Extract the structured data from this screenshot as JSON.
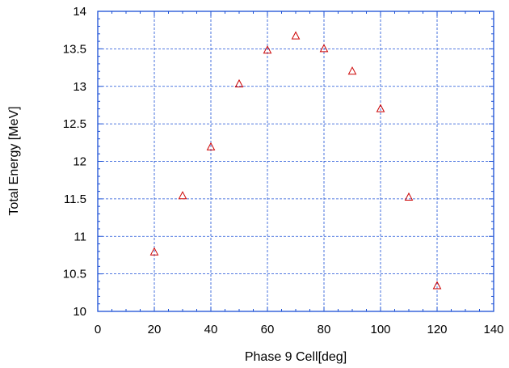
{
  "chart_data": {
    "type": "scatter",
    "title": "",
    "xlabel": "Phase 9 Cell[deg]",
    "ylabel": "Total Energy [MeV]",
    "xlim": [
      0,
      140
    ],
    "ylim": [
      10,
      14
    ],
    "xticks": [
      "0",
      "20",
      "40",
      "60",
      "80",
      "100",
      "120",
      "140"
    ],
    "yticks": [
      "10",
      "10.5",
      "11",
      "11.5",
      "12",
      "12.5",
      "13",
      "13.5",
      "14"
    ],
    "grid": true,
    "marker": "open-triangle",
    "colors": {
      "marker": "#cc0000",
      "axes": "#1a4fd6",
      "grid": "#1a4fd6"
    },
    "series": [
      {
        "x": [
          20,
          30,
          40,
          50,
          60,
          70,
          80,
          90,
          100,
          110,
          120
        ],
        "y": [
          10.79,
          11.54,
          12.19,
          13.03,
          13.48,
          13.67,
          13.5,
          13.2,
          12.7,
          11.52,
          10.34
        ]
      }
    ]
  }
}
